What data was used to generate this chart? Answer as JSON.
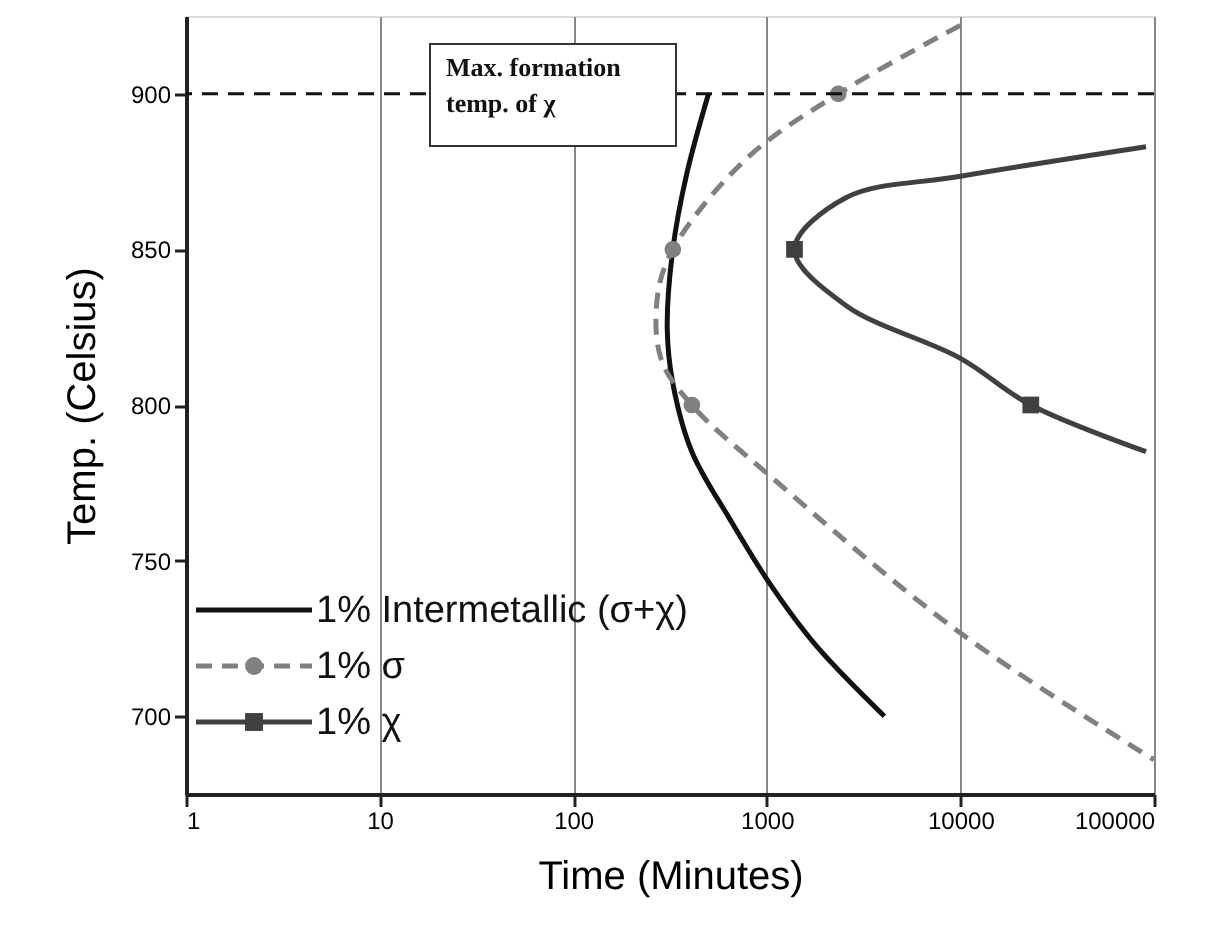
{
  "chart_data": {
    "type": "line",
    "xlabel": "Time (Minutes)",
    "ylabel": "Temp. (Celsius)",
    "log": "x",
    "xlim": [
      1,
      100000
    ],
    "xticks": [
      1,
      10,
      100,
      1000,
      10000,
      100000
    ],
    "ylim": [
      675,
      925
    ],
    "yticks": [
      700,
      750,
      800,
      850,
      900
    ],
    "grid": "x",
    "legend": "bottom left",
    "ref_lines": [
      {
        "axis": "y",
        "value": 900,
        "label": "Max. formation temp. of χ",
        "line_style": "dashed",
        "color": "#111111"
      }
    ],
    "series": [
      {
        "name": "1% Intermetallic (σ+χ)",
        "color": "#111111",
        "line_style": "solid",
        "x": [
          500,
          385,
          327,
          306,
          327,
          410,
          649,
          1026,
          1780,
          4050
        ],
        "values": [
          900,
          874,
          850,
          824.5,
          807,
          785,
          763,
          743,
          723,
          700
        ]
      },
      {
        "name": "1% σ",
        "color": "#808080",
        "line_style": "dashed",
        "x": [
          10000,
          2340,
          780,
          327,
          272,
          285,
          410,
          1026,
          10000,
          100000
        ],
        "values": [
          922,
          900,
          879,
          850,
          834.6,
          814.6,
          800,
          777.5,
          726.7,
          686
        ]
      },
      {
        "name": "1% χ",
        "color": "#404040",
        "line_style": "solid",
        "x": [
          91000,
          10000,
          2560,
          1390,
          2560,
          10000,
          23100,
          91000
        ],
        "values": [
          883,
          873.5,
          866.6,
          850,
          832,
          815,
          800,
          785
        ]
      },
      {
        "type": "scatter",
        "color": "#808080",
        "marker": "circle",
        "x": [
          2340,
          327,
          410
        ],
        "values": [
          900,
          850,
          800
        ]
      },
      {
        "type": "scatter",
        "color": "#404040",
        "marker": "square",
        "x": [
          1390,
          23100
        ],
        "values": [
          850,
          800
        ]
      }
    ]
  }
}
